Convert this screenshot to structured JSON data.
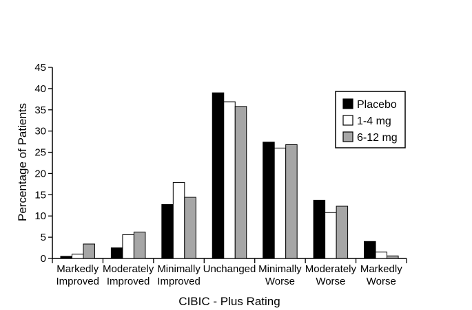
{
  "chart_data": {
    "type": "bar",
    "xlabel": "CIBIC - Plus Rating",
    "ylabel": "Percentage of Patients",
    "ylim": [
      0,
      45
    ],
    "yticks": [
      0,
      5,
      10,
      15,
      20,
      25,
      30,
      35,
      40,
      45
    ],
    "categories": [
      [
        "Markedly",
        "Improved"
      ],
      [
        "Moderately",
        "Improved"
      ],
      [
        "Minimally",
        "Improved"
      ],
      [
        "Unchanged"
      ],
      [
        "Minimally",
        "Worse"
      ],
      [
        "Moderately",
        "Worse"
      ],
      [
        "Markedly",
        "Worse"
      ]
    ],
    "series": [
      {
        "name": "Placebo",
        "color": "#000000",
        "values": [
          0.5,
          2.5,
          12.7,
          39.0,
          27.4,
          13.7,
          4.0
        ]
      },
      {
        "name": "1-4 mg",
        "color": "#ffffff",
        "values": [
          1.0,
          5.6,
          17.9,
          36.9,
          26.0,
          10.8,
          1.5
        ]
      },
      {
        "name": "6-12 mg",
        "color": "#a6a6a6",
        "values": [
          3.4,
          6.2,
          14.4,
          35.8,
          26.8,
          12.3,
          0.6
        ]
      }
    ],
    "legend_position": "top-right",
    "grid": false
  }
}
